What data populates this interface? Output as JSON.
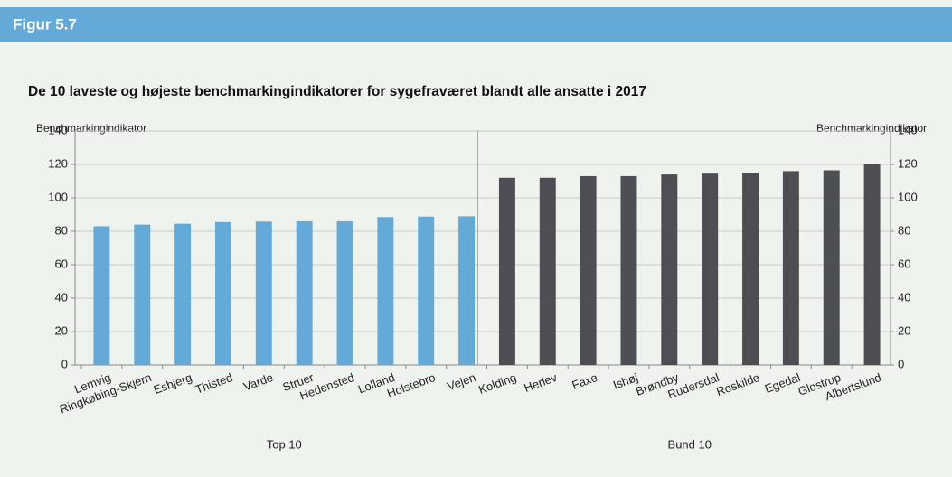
{
  "figure_label": "Figur 5.7",
  "chart_data": {
    "type": "bar",
    "title": "De 10 laveste og højeste benchmarkingindikatorer for sygefraværet blandt alle ansatte i 2017",
    "ylabel": "Benchmarkingindikator",
    "y2label": "Benchmarkingindikator",
    "categories": [
      "Lemvig",
      "Ringkøbing-Skjern",
      "Esbjerg",
      "Thisted",
      "Varde",
      "Struer",
      "Hedensted",
      "Lolland",
      "Holstebro",
      "Vejen",
      "Kolding",
      "Herlev",
      "Faxe",
      "Ishøj",
      "Brøndby",
      "Rudersdal",
      "Roskilde",
      "Egedal",
      "Glostrup",
      "Albertslund"
    ],
    "series": [
      {
        "name": "Top 10",
        "color": "#64aad8",
        "values": [
          83,
          84,
          84.5,
          85.5,
          85.8,
          86,
          86,
          88.5,
          88.8,
          89,
          null,
          null,
          null,
          null,
          null,
          null,
          null,
          null,
          null,
          null
        ]
      },
      {
        "name": "Bund 10",
        "color": "#4d4e53",
        "values": [
          null,
          null,
          null,
          null,
          null,
          null,
          null,
          null,
          null,
          null,
          112,
          112,
          113,
          113,
          114,
          114.5,
          115,
          116,
          116.5,
          120
        ]
      }
    ],
    "ylim": [
      0,
      140
    ],
    "yticks": [
      0,
      20,
      40,
      60,
      80,
      100,
      120,
      140
    ],
    "y2lim": [
      0,
      140
    ],
    "y2ticks": [
      0,
      20,
      40,
      60,
      80,
      100,
      120,
      140
    ],
    "grid": true
  }
}
